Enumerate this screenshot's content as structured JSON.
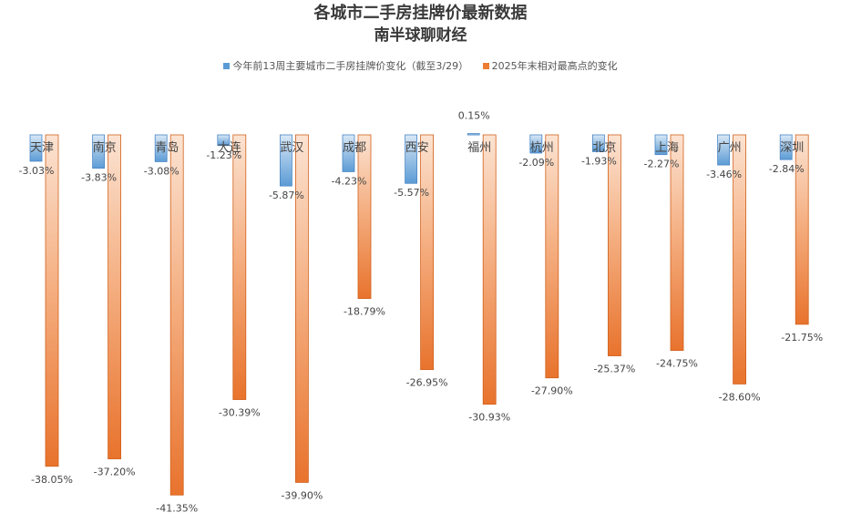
{
  "chart_data": {
    "type": "bar",
    "title": "各城市二手房挂牌价最新数据",
    "subtitle": "南半球聊财经",
    "categories": [
      "天津",
      "南京",
      "青岛",
      "大连",
      "武汉",
      "成都",
      "西安",
      "福州",
      "杭州",
      "北京",
      "上海",
      "广州",
      "深圳"
    ],
    "series": [
      {
        "name": "今年前13周主要城市二手房挂牌价变化（截至3/29）",
        "values": [
          -3.03,
          -3.83,
          -3.08,
          -1.23,
          -5.87,
          -4.23,
          -5.57,
          0.15,
          -2.09,
          -1.93,
          -2.27,
          -3.46,
          -2.84
        ],
        "labels": [
          "-3.03%",
          "-3.83%",
          "-3.08%",
          "-1.23%",
          "-5.87%",
          "-4.23%",
          "-5.57%",
          "0.15%",
          "-2.09%",
          "-1.93%",
          "-2.27%",
          "-3.46%",
          "-2.84%"
        ],
        "color": "#5b9bd5"
      },
      {
        "name": "2025年末相对最高点的变化",
        "values": [
          -38.05,
          -37.2,
          -41.35,
          -30.39,
          -39.9,
          -18.79,
          -26.95,
          -30.93,
          -27.9,
          -25.37,
          -24.75,
          -28.6,
          -21.75
        ],
        "labels": [
          "-38.05%",
          "-37.20%",
          "-41.35%",
          "-30.39%",
          "-39.90%",
          "-18.79%",
          "-26.95%",
          "-30.93%",
          "-27.90%",
          "-25.37%",
          "-24.75%",
          "-28.60%",
          "-21.75%"
        ],
        "color": "#ed7d31"
      }
    ],
    "ylim": [
      -45,
      2
    ],
    "legend_position": "top",
    "grid": false
  }
}
